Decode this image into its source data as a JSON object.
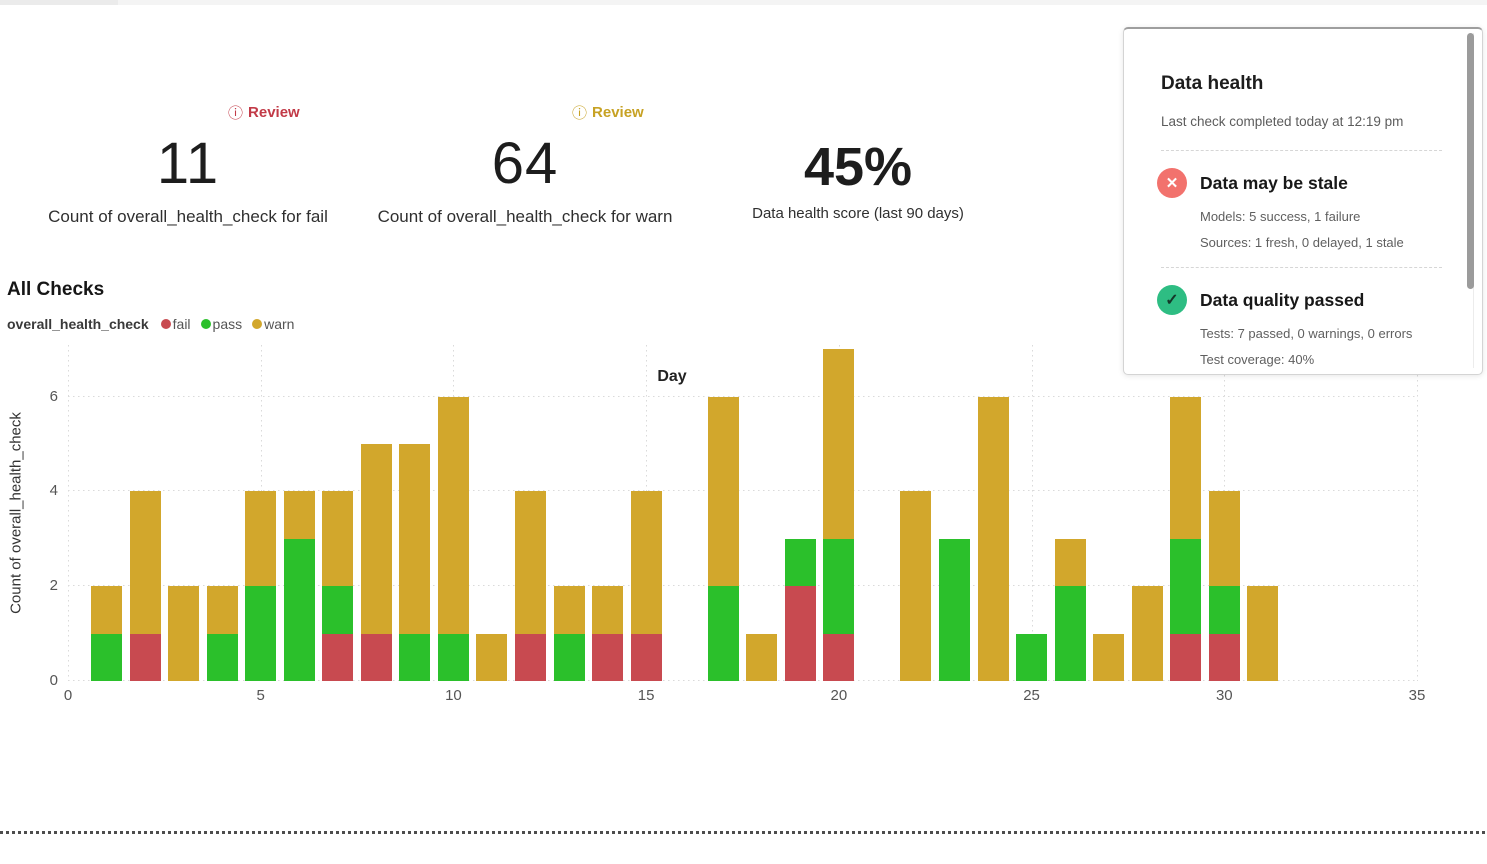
{
  "kpis": [
    {
      "badge": "Review",
      "badge_color": "#c23a47",
      "value": "11",
      "caption": "Count of overall_health_check for fail"
    },
    {
      "badge": "Review",
      "badge_color": "#c7a224",
      "value": "64",
      "caption": "Count of overall_health_check for warn"
    },
    {
      "value": "45%",
      "caption": "Data health score (last 90 days)"
    }
  ],
  "section_title": "All Checks",
  "legend": {
    "title": "overall_health_check",
    "items": [
      {
        "label": "fail",
        "color": "#c84a50"
      },
      {
        "label": "pass",
        "color": "#2bc02b"
      },
      {
        "label": "warn",
        "color": "#d2a72c"
      }
    ]
  },
  "chart_data": {
    "type": "bar",
    "stacked": true,
    "title": "All Checks",
    "xlabel": "Day",
    "ylabel": "Count of overall_health_check",
    "categories": [
      1,
      2,
      3,
      4,
      5,
      6,
      7,
      8,
      9,
      10,
      11,
      12,
      13,
      14,
      15,
      16,
      17,
      18,
      19,
      20,
      21,
      22,
      23,
      24,
      25,
      26,
      27,
      28,
      29,
      30,
      31
    ],
    "series": [
      {
        "name": "fail",
        "color": "#c84a50",
        "values": [
          0,
          1,
          0,
          0,
          0,
          0,
          1,
          1,
          0,
          0,
          0,
          1,
          0,
          1,
          1,
          0,
          0,
          0,
          2,
          1,
          0,
          0,
          0,
          0,
          0,
          0,
          0,
          0,
          1,
          1,
          0
        ]
      },
      {
        "name": "pass",
        "color": "#2bc02b",
        "values": [
          1,
          0,
          0,
          1,
          2,
          3,
          1,
          0,
          1,
          1,
          0,
          0,
          1,
          0,
          0,
          0,
          2,
          0,
          1,
          2,
          0,
          0,
          3,
          0,
          1,
          2,
          0,
          0,
          2,
          1,
          0
        ]
      },
      {
        "name": "warn",
        "color": "#d2a72c",
        "values": [
          1,
          3,
          2,
          1,
          2,
          1,
          2,
          4,
          4,
          5,
          1,
          3,
          1,
          1,
          3,
          0,
          4,
          1,
          0,
          4,
          0,
          4,
          0,
          6,
          0,
          1,
          1,
          2,
          3,
          2,
          2
        ]
      }
    ],
    "xlim": [
      0,
      35
    ],
    "ylim": [
      0,
      7.09
    ],
    "xticks": [
      0,
      5,
      10,
      15,
      20,
      25,
      30,
      35
    ],
    "yticks": [
      0,
      2,
      4,
      6
    ],
    "grid": "dotted",
    "legend_position": "top-left"
  },
  "panel": {
    "title": "Data health",
    "subtitle": "Last check completed today at 12:19 pm",
    "sections": [
      {
        "status": "fail",
        "icon": "x-icon",
        "icon_color": "#f2726d",
        "title": "Data may be stale",
        "lines": [
          "Models: 5 success, 1 failure",
          "Sources: 1 fresh, 0 delayed, 1 stale"
        ]
      },
      {
        "status": "pass",
        "icon": "check-icon",
        "icon_color": "#2ebd83",
        "title": "Data quality passed",
        "lines": [
          "Tests: 7 passed, 0 warnings, 0 errors",
          "Test coverage: 40%"
        ]
      }
    ]
  },
  "icons": {
    "info": "ⓘ",
    "x": "✕",
    "check": "✓"
  }
}
